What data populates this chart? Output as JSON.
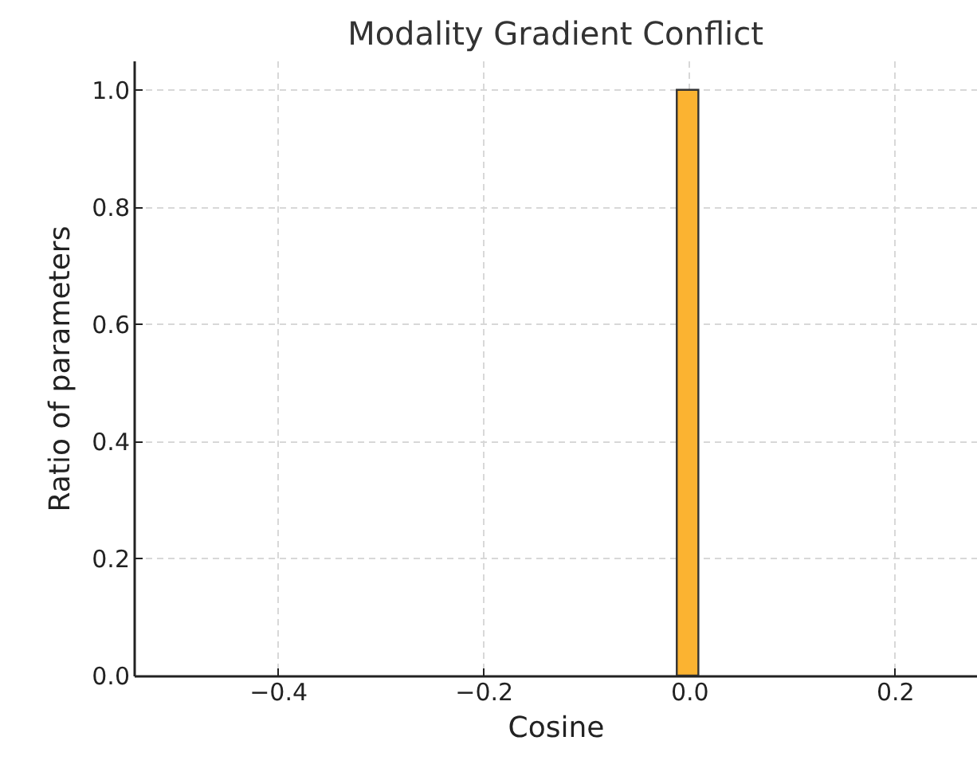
{
  "chart_data": {
    "type": "histogram",
    "title": "Modality Gradient Conflict",
    "xlabel": "Cosine",
    "ylabel": "Ratio of parameters",
    "bins": [
      -0.012,
      0.009
    ],
    "values": [
      1.0
    ],
    "color": "#fbb331",
    "xlim": [
      -0.54,
      0.28
    ],
    "xticks": [
      {
        "value": -0.4,
        "label": "−0.4"
      },
      {
        "value": -0.2,
        "label": "−0.2"
      },
      {
        "value": 0,
        "label": "0.0"
      },
      {
        "value": 0.2,
        "label": "0.2"
      }
    ],
    "ylim": [
      0,
      1.05
    ],
    "yticks": [
      {
        "value": 0,
        "label": "0.0"
      },
      {
        "value": 0.2,
        "label": "0.2"
      },
      {
        "value": 0.4,
        "label": "0.4"
      },
      {
        "value": 0.6,
        "label": "0.6"
      },
      {
        "value": 0.8,
        "label": "0.8"
      },
      {
        "value": 1,
        "label": "1.0"
      }
    ],
    "grid": true
  }
}
